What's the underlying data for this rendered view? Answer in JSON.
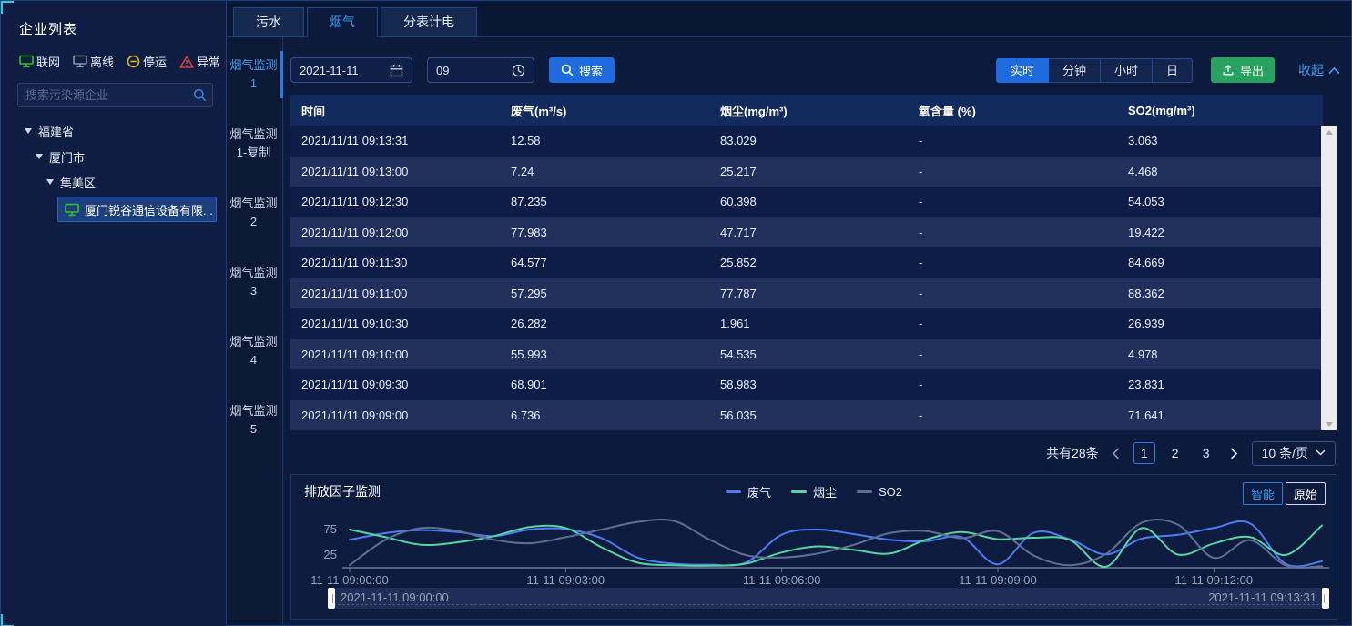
{
  "sidebar": {
    "title": "企业列表",
    "legend": [
      {
        "label": "联网",
        "type": "online"
      },
      {
        "label": "离线",
        "type": "offline"
      },
      {
        "label": "停运",
        "type": "stopped"
      },
      {
        "label": "异常",
        "type": "abnormal"
      }
    ],
    "search_placeholder": "搜索污染源企业",
    "tree": [
      {
        "label": "福建省",
        "level": 0
      },
      {
        "label": "厦门市",
        "level": 1
      },
      {
        "label": "集美区",
        "level": 2
      },
      {
        "label": "厦门锐谷通信设备有限...",
        "level": 3,
        "selected": true
      }
    ]
  },
  "tabs": [
    {
      "label": "污水",
      "active": false
    },
    {
      "label": "烟气",
      "active": true
    },
    {
      "label": "分表计电",
      "active": false
    }
  ],
  "subnav": [
    {
      "label": "烟气监测1",
      "active": true
    },
    {
      "label": "烟气监测1-复制",
      "active": false
    },
    {
      "label": "烟气监测2",
      "active": false
    },
    {
      "label": "烟气监测3",
      "active": false
    },
    {
      "label": "烟气监测4",
      "active": false
    },
    {
      "label": "烟气监测5",
      "active": false
    }
  ],
  "toolbar": {
    "date_value": "2021-11-11",
    "time_value": "09",
    "search_label": "搜索",
    "granularity": [
      "实时",
      "分钟",
      "小时",
      "日"
    ],
    "granularity_active": "实时",
    "export_label": "导出",
    "collapse_label": "收起"
  },
  "table": {
    "columns": [
      "时间",
      "废气(m³/s)",
      "烟尘(mg/m³)",
      "氧含量 (%)",
      "SO2(mg/m³)"
    ],
    "rows": [
      [
        "2021/11/11 09:13:31",
        "12.58",
        "83.029",
        "-",
        "3.063"
      ],
      [
        "2021/11/11 09:13:00",
        "7.24",
        "25.217",
        "-",
        "4.468"
      ],
      [
        "2021/11/11 09:12:30",
        "87.235",
        "60.398",
        "-",
        "54.053"
      ],
      [
        "2021/11/11 09:12:00",
        "77.983",
        "47.717",
        "-",
        "19.422"
      ],
      [
        "2021/11/11 09:11:30",
        "64.577",
        "25.852",
        "-",
        "84.669"
      ],
      [
        "2021/11/11 09:11:00",
        "57.295",
        "77.787",
        "-",
        "88.362"
      ],
      [
        "2021/11/11 09:10:30",
        "26.282",
        "1.961",
        "-",
        "26.939"
      ],
      [
        "2021/11/11 09:10:00",
        "55.993",
        "54.535",
        "-",
        "4.978"
      ],
      [
        "2021/11/11 09:09:30",
        "68.901",
        "58.983",
        "-",
        "23.831"
      ],
      [
        "2021/11/11 09:09:00",
        "6.736",
        "56.035",
        "-",
        "71.641"
      ]
    ]
  },
  "pagination": {
    "total_text": "共有28条",
    "pages": [
      "1",
      "2",
      "3"
    ],
    "current": "1",
    "page_size": "10 条/页"
  },
  "chart_data": {
    "type": "line",
    "title": "排放因子监测",
    "x": [
      "09:00:00",
      "09:00:30",
      "09:01:00",
      "09:01:30",
      "09:02:00",
      "09:02:30",
      "09:03:00",
      "09:03:30",
      "09:04:00",
      "09:04:30",
      "09:05:00",
      "09:05:30",
      "09:06:00",
      "09:06:30",
      "09:07:00",
      "09:07:30",
      "09:08:00",
      "09:08:30",
      "09:09:00",
      "09:09:30",
      "09:10:00",
      "09:10:30",
      "09:11:00",
      "09:11:30",
      "09:12:00",
      "09:12:30",
      "09:13:00",
      "09:13:31"
    ],
    "x_tick_labels": [
      "11-11 09:00:00",
      "11-11 09:03:00",
      "11-11 09:06:00",
      "11-11 09:09:00",
      "11-11 09:12:00"
    ],
    "x_tick_indices": [
      0,
      6,
      12,
      18,
      24
    ],
    "y_ticks": [
      25,
      75
    ],
    "ylim": [
      0,
      100
    ],
    "grid": false,
    "legend_position": "top-center",
    "modes": [
      "智能",
      "原始"
    ],
    "mode_active": "智能",
    "series": [
      {
        "name": "废气",
        "key": "waste-gas",
        "color": "#4d7bf3",
        "values": [
          55,
          68,
          74,
          70,
          62,
          75,
          76,
          58,
          20,
          8,
          6,
          10,
          65,
          75,
          66,
          55,
          52,
          60,
          6.736,
          68.901,
          55.993,
          26.282,
          57.295,
          64.577,
          77.983,
          87.235,
          7.24,
          12.58
        ]
      },
      {
        "name": "烟尘",
        "key": "smoke-dust",
        "color": "#54d6a0",
        "values": [
          75,
          60,
          45,
          50,
          62,
          80,
          78,
          40,
          10,
          5,
          4,
          8,
          30,
          42,
          35,
          28,
          55,
          70,
          56.035,
          58.983,
          54.535,
          1.961,
          77.787,
          25.852,
          47.717,
          60.398,
          25.217,
          83.029
        ]
      },
      {
        "name": "SO2",
        "key": "so2",
        "color": "#5d7092",
        "values": [
          5,
          55,
          78,
          72,
          55,
          48,
          60,
          75,
          90,
          92,
          55,
          25,
          20,
          28,
          45,
          68,
          72,
          58,
          71.641,
          23.831,
          4.978,
          26.939,
          88.362,
          84.669,
          19.422,
          54.053,
          4.468,
          3.063
        ]
      }
    ],
    "slider": {
      "start": "2021-11-11 09:00:00",
      "end": "2021-11-11 09:13:31"
    }
  }
}
